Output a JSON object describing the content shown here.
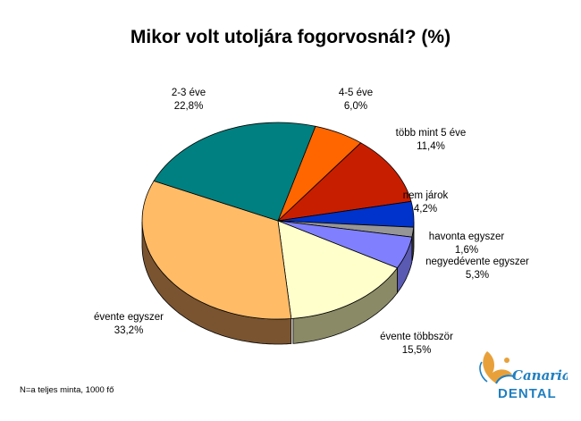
{
  "chart_data": {
    "type": "pie",
    "title": "Mikor volt utoljára fogorvosnál? (%)",
    "slices": [
      {
        "label": "4-5 éve",
        "value_text": "6,0%",
        "value": 6.0,
        "color": "#ff6600",
        "side": "#b24700"
      },
      {
        "label": "több mint 5 éve",
        "value_text": "11,4%",
        "value": 11.4,
        "color": "#c81e00",
        "side": "#8c1500"
      },
      {
        "label": "nem járok",
        "value_text": "4,2%",
        "value": 4.2,
        "color": "#0033cc",
        "side": "#00238e"
      },
      {
        "label": "havonta egyszer",
        "value_text": "1,6%",
        "value": 1.6,
        "color": "#969696",
        "side": "#696969"
      },
      {
        "label": "negyedévente egyszer",
        "value_text": "5,3%",
        "value": 5.3,
        "color": "#8080ff",
        "side": "#5a5ab2"
      },
      {
        "label": "évente többször",
        "value_text": "15,5%",
        "value": 15.5,
        "color": "#ffffcc",
        "side": "#8a8a66"
      },
      {
        "label": "évente egyszer",
        "value_text": "33,2%",
        "value": 33.2,
        "color": "#ffbb66",
        "side": "#7a5430"
      },
      {
        "label": "2-3 éve",
        "value_text": "22,8%",
        "value": 22.8,
        "color": "#008080",
        "side": "#005a5a"
      }
    ],
    "legend": "none",
    "data_labels": "outside"
  },
  "footnote": "N=a teljes minta, 1000 fő",
  "logo": {
    "brand": "Canaria",
    "sub": "DENTAL",
    "accent": "#e8a13a",
    "blue": "#1f7fc0"
  }
}
